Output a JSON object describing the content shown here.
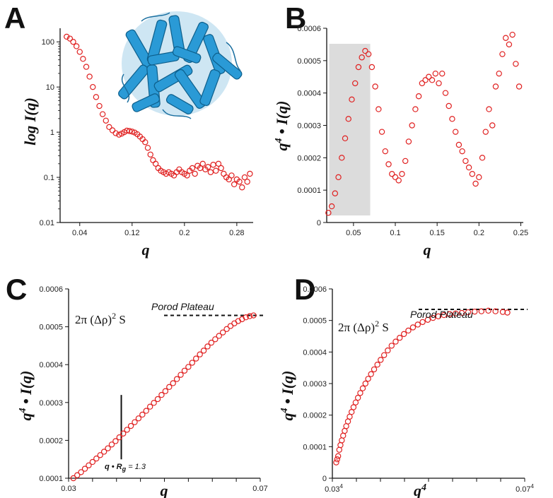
{
  "chart_data": [
    {
      "panel": "A",
      "type": "scatter",
      "xlabel": "q",
      "ylabel": "log I(q)",
      "yscale": "log",
      "xlim": [
        0.01,
        0.305
      ],
      "ylim": [
        0.01,
        200
      ],
      "xticks": [
        0.04,
        0.12,
        0.2,
        0.28
      ],
      "xtick_labels": [
        "0.04",
        "0.12",
        "0.2",
        "0.28"
      ],
      "yticks": [
        0.01,
        0.1,
        1,
        10,
        100
      ],
      "ytick_labels": [
        "0.01",
        "0.1",
        "1",
        "10",
        "100"
      ],
      "marker_color": "#e02020",
      "inset": "protein-structure-ribbon",
      "inset_color": "#1f8fc8",
      "x": [
        0.02,
        0.025,
        0.03,
        0.035,
        0.04,
        0.045,
        0.05,
        0.055,
        0.06,
        0.065,
        0.07,
        0.075,
        0.08,
        0.085,
        0.09,
        0.095,
        0.1,
        0.104,
        0.108,
        0.112,
        0.116,
        0.12,
        0.124,
        0.128,
        0.132,
        0.136,
        0.14,
        0.144,
        0.148,
        0.152,
        0.156,
        0.16,
        0.164,
        0.168,
        0.172,
        0.176,
        0.18,
        0.184,
        0.188,
        0.192,
        0.196,
        0.2,
        0.204,
        0.208,
        0.212,
        0.216,
        0.22,
        0.224,
        0.228,
        0.232,
        0.236,
        0.24,
        0.244,
        0.248,
        0.252,
        0.256,
        0.26,
        0.264,
        0.268,
        0.272,
        0.276,
        0.28,
        0.284,
        0.288,
        0.292,
        0.296,
        0.3
      ],
      "y": [
        130,
        118,
        100,
        80,
        60,
        42,
        28,
        17,
        10,
        6,
        3.8,
        2.5,
        1.8,
        1.3,
        1.1,
        0.95,
        0.88,
        0.93,
        1.0,
        1.08,
        1.06,
        1.03,
        0.98,
        0.9,
        0.8,
        0.7,
        0.6,
        0.45,
        0.32,
        0.24,
        0.2,
        0.16,
        0.14,
        0.13,
        0.12,
        0.13,
        0.12,
        0.11,
        0.13,
        0.15,
        0.13,
        0.12,
        0.11,
        0.14,
        0.16,
        0.12,
        0.18,
        0.16,
        0.2,
        0.15,
        0.17,
        0.13,
        0.19,
        0.14,
        0.2,
        0.16,
        0.12,
        0.1,
        0.09,
        0.11,
        0.07,
        0.09,
        0.08,
        0.06,
        0.1,
        0.08,
        0.12
      ]
    },
    {
      "panel": "B",
      "type": "scatter",
      "xlabel": "q",
      "ylabel": "q⁴ • I(q)",
      "xlim": [
        0.018,
        0.253
      ],
      "ylim": [
        0,
        0.0006
      ],
      "xticks": [
        0.05,
        0.1,
        0.15,
        0.2,
        0.25
      ],
      "xtick_labels": [
        "0.05",
        "0.1",
        "0.15",
        "0.2",
        "0.25"
      ],
      "yticks": [
        0,
        0.0001,
        0.0002,
        0.0003,
        0.0004,
        0.0005,
        0.0006
      ],
      "ytick_labels": [
        "0",
        "0.0001",
        "0.0002",
        "0.0003",
        "0.0004",
        "0.0005",
        "0.0006"
      ],
      "highlight_x_range": [
        0.021,
        0.07
      ],
      "highlight_color": "#dcdcdc",
      "marker_color": "#e02020",
      "x": [
        0.02,
        0.024,
        0.028,
        0.032,
        0.036,
        0.04,
        0.044,
        0.048,
        0.052,
        0.056,
        0.06,
        0.064,
        0.068,
        0.072,
        0.076,
        0.08,
        0.084,
        0.088,
        0.092,
        0.096,
        0.1,
        0.104,
        0.108,
        0.112,
        0.116,
        0.12,
        0.124,
        0.128,
        0.132,
        0.136,
        0.14,
        0.144,
        0.148,
        0.152,
        0.156,
        0.16,
        0.164,
        0.168,
        0.172,
        0.176,
        0.18,
        0.184,
        0.188,
        0.192,
        0.196,
        0.2,
        0.204,
        0.208,
        0.212,
        0.216,
        0.22,
        0.224,
        0.228,
        0.232,
        0.236,
        0.24,
        0.244,
        0.248
      ],
      "y": [
        3e-05,
        5e-05,
        9e-05,
        0.00014,
        0.0002,
        0.00026,
        0.00032,
        0.00038,
        0.00043,
        0.00048,
        0.00051,
        0.00053,
        0.00052,
        0.00048,
        0.00042,
        0.00035,
        0.00028,
        0.00022,
        0.00018,
        0.00015,
        0.00014,
        0.00013,
        0.00015,
        0.00019,
        0.00025,
        0.0003,
        0.00035,
        0.00039,
        0.00043,
        0.00044,
        0.00045,
        0.00044,
        0.00046,
        0.00043,
        0.00046,
        0.0004,
        0.00036,
        0.00032,
        0.00028,
        0.00024,
        0.00022,
        0.00019,
        0.00017,
        0.00015,
        0.00012,
        0.00014,
        0.0002,
        0.00028,
        0.00035,
        0.0003,
        0.00042,
        0.00046,
        0.00052,
        0.00057,
        0.00055,
        0.00058,
        0.00049,
        0.00042
      ]
    },
    {
      "panel": "C",
      "type": "scatter",
      "xlabel": "q",
      "ylabel": "q⁴ • I(q)",
      "xlim": [
        0.03,
        0.07
      ],
      "ylim": [
        0.0001,
        0.0006
      ],
      "xticks": [
        0.03,
        0.035,
        0.04,
        0.045,
        0.05,
        0.055,
        0.06,
        0.065,
        0.07
      ],
      "xtick_labels": [
        "0.03",
        "",
        "",
        "",
        "",
        "",
        "",
        "",
        "0.07"
      ],
      "yticks": [
        0.0001,
        0.0002,
        0.0003,
        0.0004,
        0.0005,
        0.0006
      ],
      "ytick_labels": [
        "0.0001",
        "0.0002",
        "0.0003",
        "0.0004",
        "0.0005",
        "0.0006"
      ],
      "plateau_y": 0.00053,
      "plateau_label": "Porod Plateau",
      "plateau_formula": "2π (Δρ)2 S",
      "marker_line_x": 0.041,
      "marker_line_y": [
        0.00015,
        0.00032
      ],
      "marker_label": "q • Rg = 1.3",
      "marker_color": "#e02020",
      "x": [
        0.031,
        0.0318,
        0.0326,
        0.0334,
        0.0342,
        0.035,
        0.0358,
        0.0366,
        0.0374,
        0.0382,
        0.039,
        0.0398,
        0.0406,
        0.0414,
        0.0422,
        0.043,
        0.0438,
        0.0446,
        0.0454,
        0.0462,
        0.047,
        0.0478,
        0.0486,
        0.0494,
        0.0502,
        0.051,
        0.0518,
        0.0526,
        0.0534,
        0.0542,
        0.055,
        0.0558,
        0.0566,
        0.0574,
        0.0582,
        0.059,
        0.0598,
        0.0606,
        0.0614,
        0.0622,
        0.063,
        0.0638,
        0.0646,
        0.0654,
        0.0662,
        0.067,
        0.0678,
        0.0686
      ],
      "y": [
        0.0001,
        0.000108,
        0.000116,
        0.000125,
        0.000134,
        0.000143,
        0.000152,
        0.000161,
        0.00017,
        0.000179,
        0.000189,
        0.000198,
        0.000208,
        0.000218,
        0.000228,
        0.000238,
        0.000248,
        0.000258,
        0.000268,
        0.000278,
        0.000289,
        0.000299,
        0.000309,
        0.00032,
        0.00033,
        0.000341,
        0.000351,
        0.000362,
        0.000373,
        0.000384,
        0.000394,
        0.000405,
        0.000416,
        0.000427,
        0.000437,
        0.000448,
        0.000458,
        0.000467,
        0.000476,
        0.000485,
        0.000494,
        0.000502,
        0.000509,
        0.000515,
        0.00052,
        0.000525,
        0.000528,
        0.00053
      ]
    },
    {
      "panel": "D",
      "type": "scatter",
      "xlabel": "q⁴",
      "ylabel": "q⁴ • I(q)",
      "xlim": [
        0,
        1
      ],
      "ylim": [
        0,
        0.0006
      ],
      "xticks": [
        0,
        0.125,
        0.25,
        0.375,
        0.5,
        0.625,
        0.75,
        0.875,
        1
      ],
      "xtick_labels": [
        "0.03⁴",
        "",
        "",
        "",
        "",
        "",
        "",
        "",
        "0.07⁴"
      ],
      "yticks": [
        0,
        0.0001,
        0.0002,
        0.0003,
        0.0004,
        0.0005,
        0.0006
      ],
      "ytick_labels": [
        "0",
        "0.0001",
        "0.0002",
        "0.0003",
        "0.0004",
        "0.0005",
        "0.0006"
      ],
      "plateau_y": 0.000535,
      "plateau_label": "Porod Plateau",
      "plateau_formula": "2π (Δρ)2 S",
      "marker_color": "#e02020",
      "x": [
        0.02,
        0.025,
        0.03,
        0.036,
        0.042,
        0.049,
        0.056,
        0.064,
        0.072,
        0.081,
        0.09,
        0.1,
        0.11,
        0.121,
        0.133,
        0.145,
        0.158,
        0.172,
        0.186,
        0.201,
        0.217,
        0.234,
        0.251,
        0.269,
        0.288,
        0.308,
        0.329,
        0.35,
        0.372,
        0.395,
        0.419,
        0.444,
        0.469,
        0.496,
        0.523,
        0.551,
        0.58,
        0.61,
        0.641,
        0.673,
        0.706,
        0.74,
        0.775,
        0.811,
        0.848,
        0.886,
        0.91
      ],
      "y": [
        5e-05,
        6e-05,
        7e-05,
        9e-05,
        0.000105,
        0.00012,
        0.000135,
        0.00015,
        0.000165,
        0.00018,
        0.000195,
        0.00021,
        0.000225,
        0.00024,
        0.000255,
        0.00027,
        0.000285,
        0.0003,
        0.000315,
        0.00033,
        0.000345,
        0.00036,
        0.000375,
        0.00039,
        0.000405,
        0.00042,
        0.000433,
        0.000445,
        0.000457,
        0.000468,
        0.000478,
        0.000487,
        0.000495,
        0.000502,
        0.000508,
        0.000513,
        0.000517,
        0.00052,
        0.000522,
        0.000524,
        0.000526,
        0.000528,
        0.000529,
        0.000531,
        0.000529,
        0.000527,
        0.000525
      ]
    }
  ],
  "panels": {
    "a": {
      "letter": "A",
      "xlabel": "q",
      "ylabel": "log I(q)",
      "ticks_x": [
        "0.04",
        "0.12",
        "0.2",
        "0.28"
      ],
      "ticks_y": [
        "100",
        "10",
        "1",
        "0.1",
        "0.01"
      ]
    },
    "b": {
      "letter": "B",
      "xlabel": "q",
      "ylabel_q": "q",
      "ylabel_exp": "4",
      "ylabel_rest": " • I(q)",
      "ticks_x": [
        "0.05",
        "0.1",
        "0.15",
        "0.2",
        "0.25"
      ],
      "ticks_y": [
        "0.0006",
        "0.0005",
        "0.0004",
        "0.0003",
        "0.0002",
        "0.0001",
        "0"
      ]
    },
    "c": {
      "letter": "C",
      "xlabel": "q",
      "ylabel_q": "q",
      "ylabel_exp": "4",
      "ylabel_rest": " • I(q)",
      "ticks_x": [
        "0.03",
        "0.07"
      ],
      "ticks_y": [
        "0.0006",
        "0.0005",
        "0.0004",
        "0.0003",
        "0.0002",
        "0.0001"
      ],
      "formula_pre": "2π (Δρ)",
      "formula_exp": "2",
      "formula_post": " S",
      "plateau_label": "Porod Plateau",
      "marker_pre": "q • R",
      "marker_sub": "g",
      "marker_post": " = 1.3"
    },
    "d": {
      "letter": "D",
      "xlabel_q": "q",
      "xlabel_exp": "4",
      "ylabel_q": "q",
      "ylabel_exp": "4",
      "ylabel_rest": " • I(q)",
      "tick_x_left": "0.03",
      "tick_x_right": "0.07",
      "tick_exp": "4",
      "ticks_y": [
        "0.0006",
        "0.0005",
        "0.0004",
        "0.0003",
        "0.0002",
        "0.0001",
        "0"
      ],
      "formula_pre": "2π (Δρ)",
      "formula_exp": "2",
      "formula_post": " S",
      "plateau_label": "Porod Plateau"
    }
  }
}
